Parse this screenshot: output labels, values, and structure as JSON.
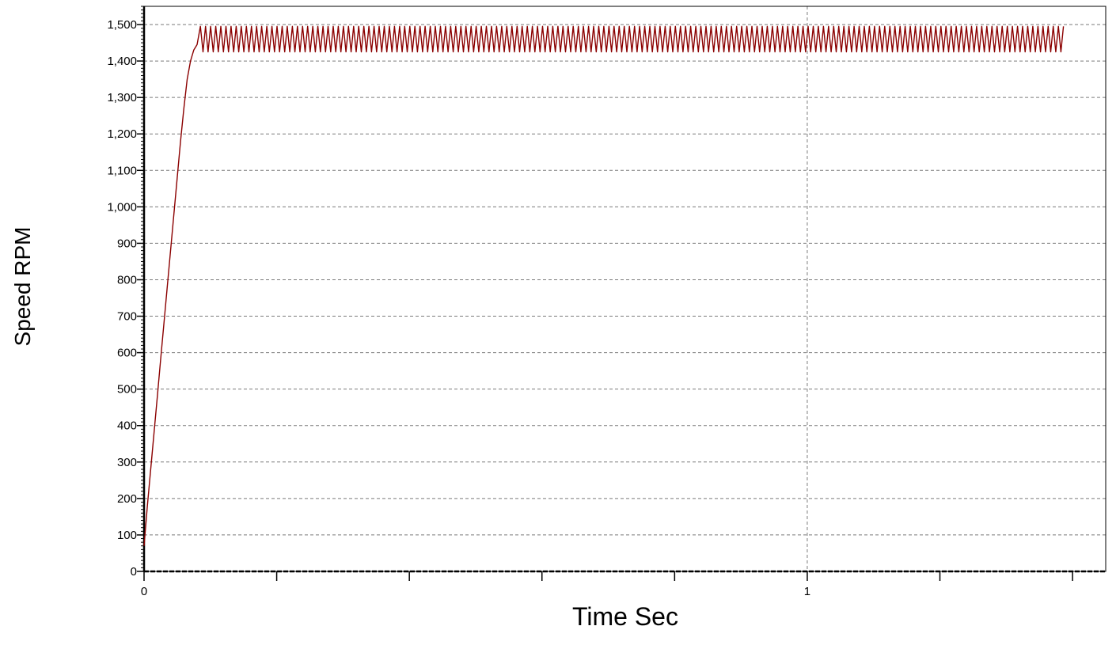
{
  "chart_data": {
    "type": "line",
    "xlabel": "Time Sec",
    "ylabel": "Speed RPM",
    "xlim": [
      0,
      1.45
    ],
    "ylim": [
      0,
      1550
    ],
    "y_ticks": [
      0,
      100,
      200,
      300,
      400,
      500,
      600,
      700,
      800,
      900,
      1000,
      1100,
      1200,
      1300,
      1400,
      1500
    ],
    "y_tick_labels": [
      "0",
      "100",
      "200",
      "300",
      "400",
      "500",
      "600",
      "700",
      "800",
      "900",
      "1,000",
      "1,100",
      "1,200",
      "1,300",
      "1,400",
      "1,500"
    ],
    "x_major_ticks": [
      0,
      0.2,
      0.4,
      0.6,
      0.8,
      1.0,
      1.2,
      1.4
    ],
    "x_tick_labels": [
      {
        "value": 0,
        "label": "0"
      },
      {
        "value": 1,
        "label": "1"
      }
    ],
    "grid": true,
    "series": [
      {
        "color": "#8b0000",
        "rampup": [
          [
            0.0,
            70
          ],
          [
            0.005,
            180
          ],
          [
            0.01,
            280
          ],
          [
            0.015,
            380
          ],
          [
            0.02,
            480
          ],
          [
            0.025,
            580
          ],
          [
            0.03,
            680
          ],
          [
            0.035,
            780
          ],
          [
            0.04,
            880
          ],
          [
            0.045,
            980
          ],
          [
            0.05,
            1080
          ],
          [
            0.055,
            1180
          ],
          [
            0.06,
            1270
          ],
          [
            0.065,
            1350
          ],
          [
            0.07,
            1400
          ],
          [
            0.075,
            1430
          ],
          [
            0.08,
            1445
          ]
        ],
        "steady_state": {
          "t_start": 0.085,
          "t_end": 1.39,
          "min": 1425,
          "max": 1495,
          "approx_period_sec": 0.0077
        }
      }
    ]
  }
}
